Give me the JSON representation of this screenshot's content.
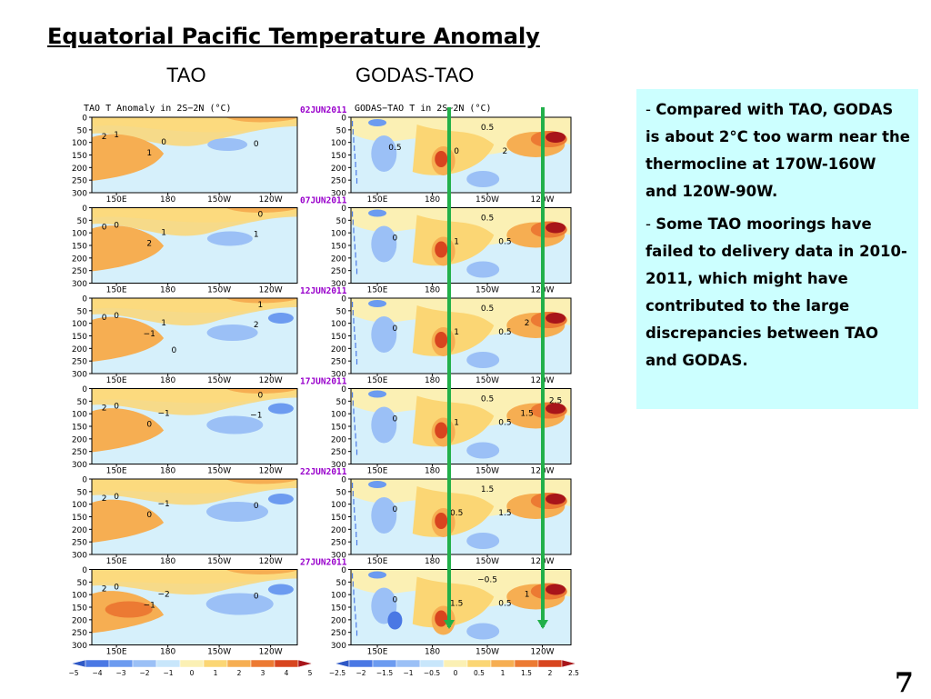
{
  "slide": {
    "title": "Equatorial Pacific Temperature Anomaly",
    "left_column_heading": "TAO",
    "right_column_heading": "GODAS-TAO",
    "page_number": "7"
  },
  "figure": {
    "left_panel_title": "TAO  T Anomaly in 2S−2N (°C)",
    "right_panel_title_suffix": "GODAS−TAO  T in 2S~2N (°C)",
    "dates": [
      "02JUN2011",
      "07JUN2011",
      "12JUN2011",
      "17JUN2011",
      "22JUN2011",
      "27JUN2011"
    ],
    "depth_ticks": [
      "0",
      "50",
      "100",
      "150",
      "200",
      "250",
      "300"
    ],
    "lon_ticks": [
      "150E",
      "180",
      "150W",
      "120W"
    ],
    "left_colorbar_ticks": [
      "−5",
      "−4",
      "−3",
      "−2",
      "−1",
      "0",
      "1",
      "2",
      "3",
      "4",
      "5"
    ],
    "right_colorbar_ticks": [
      "−2.5",
      "−2",
      "−1.5",
      "−1",
      "−0.5",
      "0",
      "0.5",
      "1",
      "1.5",
      "2",
      "2.5"
    ],
    "left_colorbar_colors": [
      "#2e58c6",
      "#4a78e4",
      "#6c9bf0",
      "#9bc0f6",
      "#c8e6fb",
      "#fbf0b4",
      "#fbd674",
      "#f6ae52",
      "#ec7a33",
      "#d8451f",
      "#a8151a"
    ],
    "right_colorbar_colors": [
      "#2e58c6",
      "#4a78e4",
      "#6c9bf0",
      "#9bc0f6",
      "#c8e6fb",
      "#fbf0b4",
      "#fbd674",
      "#f6ae52",
      "#ec7a33",
      "#d8451f",
      "#a8151a"
    ],
    "left_contour_labels": [
      [
        "2",
        "1",
        "0",
        "1",
        "0"
      ],
      [
        "0",
        "0",
        "1",
        "2",
        "1",
        "0"
      ],
      [
        "0",
        "0",
        "1",
        "−1",
        "2",
        "1",
        "0"
      ],
      [
        "2",
        "0",
        "−1",
        "0",
        "−1",
        "0"
      ],
      [
        "2",
        "0",
        "−1",
        "0",
        "0"
      ],
      [
        "2",
        "0",
        "−2",
        "−1",
        "0"
      ]
    ],
    "right_contour_labels": [
      [
        "0.5",
        "0.5",
        "0",
        "2"
      ],
      [
        "0",
        "0.5",
        "1",
        "0.5"
      ],
      [
        "0",
        "0.5",
        "1",
        "0.5",
        "2"
      ],
      [
        "0",
        "0.5",
        "1",
        "0.5",
        "1.5",
        "2.5"
      ],
      [
        "0",
        "1.5",
        "0.5",
        "1.5"
      ],
      [
        "0",
        "−0.5",
        "1.5",
        "0.5",
        "1"
      ]
    ],
    "colors": {
      "positive": "#f6ae52",
      "strong_positive": "#d8451f",
      "negative": "#9bc0f6",
      "neutral": "#d6f0fb",
      "marker_line": "#22b04a",
      "date_text": "#9900cc"
    }
  },
  "notes": [
    {
      "dash": "- ",
      "text": "Compared with TAO, GODAS is about 2°C too warm near the thermocline at 170W-160W and 120W-90W."
    },
    {
      "dash": "- ",
      "text": "Some TAO moorings have failed to delivery data in 2010-2011, which might have contributed to the large discrepancies between TAO and GODAS."
    }
  ]
}
